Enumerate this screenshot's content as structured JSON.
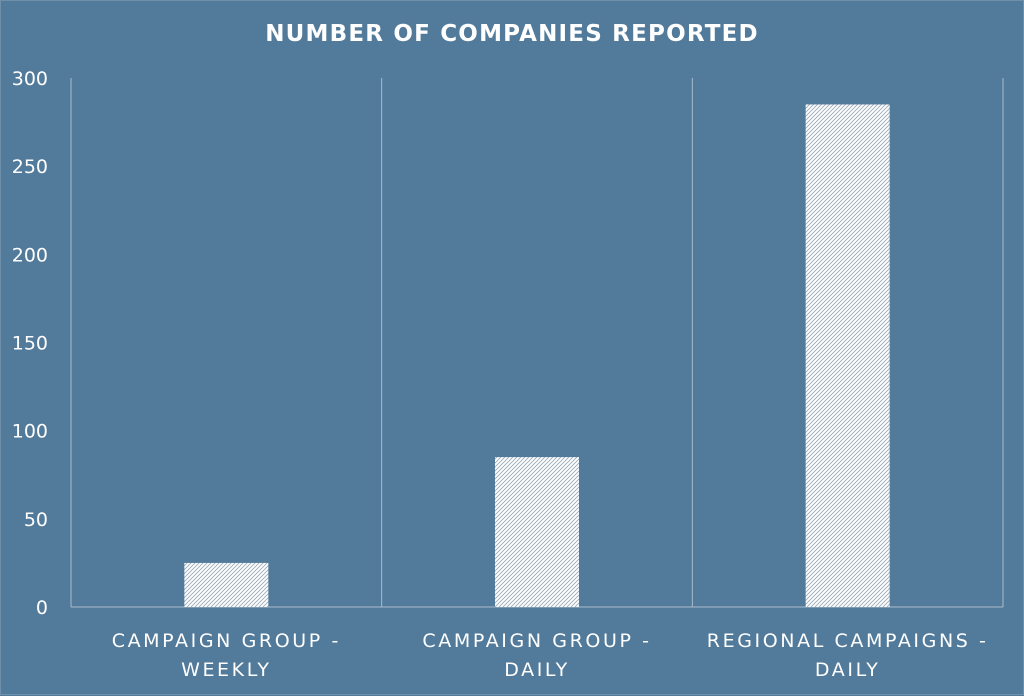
{
  "chart_data": {
    "type": "bar",
    "title": "NUMBER OF COMPANIES REPORTED",
    "categories": [
      [
        "CAMPAIGN GROUP -",
        "WEEKLY"
      ],
      [
        "CAMPAIGN GROUP -",
        "DAILY"
      ],
      [
        "REGIONAL CAMPAIGNS -",
        "DAILY"
      ]
    ],
    "values": [
      25,
      85,
      285
    ],
    "yticks": [
      "0",
      "50",
      "100",
      "150",
      "200",
      "250",
      "300"
    ],
    "ylim": [
      0,
      300
    ],
    "xlabel": "",
    "ylabel": "",
    "grid": "vertical-category-separators",
    "legend": "none",
    "colors": {
      "background": "#527a9a",
      "bar_fill": "#ffffff",
      "bar_hatch": "#9aa9b8",
      "axis_line": "#a9bccc",
      "text": "#ffffff"
    }
  }
}
